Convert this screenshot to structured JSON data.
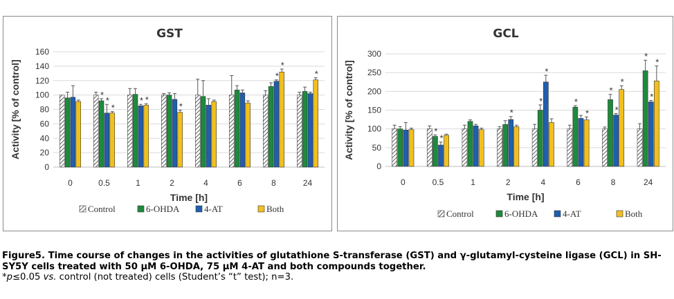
{
  "chart_data": [
    {
      "type": "bar",
      "title": "GST",
      "xlabel": "Time [h]",
      "ylabel": "Activity [% of control]",
      "ylim": [
        0,
        160
      ],
      "yticks": [
        0,
        20,
        40,
        60,
        80,
        100,
        120,
        140,
        160
      ],
      "categories": [
        "0",
        "0.5",
        "1",
        "2",
        "4",
        "6",
        "8",
        "24"
      ],
      "legend_position": "bottom",
      "grid": true,
      "series": [
        {
          "name": "Control",
          "values": [
            100,
            100,
            100,
            100,
            100,
            100,
            100,
            100
          ],
          "errors": [
            0,
            4,
            9,
            2,
            22,
            27,
            6,
            4
          ],
          "color": "#ffffff",
          "pattern": "hatch"
        },
        {
          "name": "6-OHDA",
          "values": [
            96,
            92,
            101,
            100,
            98,
            107,
            112,
            105
          ],
          "errors": [
            8,
            3,
            8,
            3,
            22,
            6,
            5,
            6
          ],
          "color": "#1e8a3c"
        },
        {
          "name": "4-AT",
          "values": [
            97,
            75,
            85,
            94,
            86,
            103,
            119,
            102
          ],
          "errors": [
            16,
            12,
            2,
            8,
            9,
            4,
            2,
            2
          ],
          "color": "#1f5fad"
        },
        {
          "name": "Both",
          "values": [
            91,
            75,
            86,
            76,
            91,
            89,
            132,
            121
          ],
          "errors": [
            2,
            2,
            2,
            3,
            2,
            3,
            4,
            3
          ],
          "color": "#f2c01e"
        }
      ],
      "significance": [
        {
          "category": "0.5",
          "series": "6-OHDA"
        },
        {
          "category": "0.5",
          "series": "4-AT"
        },
        {
          "category": "0.5",
          "series": "Both"
        },
        {
          "category": "1",
          "series": "4-AT"
        },
        {
          "category": "1",
          "series": "Both"
        },
        {
          "category": "2",
          "series": "Both"
        },
        {
          "category": "8",
          "series": "4-AT"
        },
        {
          "category": "8",
          "series": "Both"
        },
        {
          "category": "24",
          "series": "Both"
        }
      ],
      "significance_marker": "*"
    },
    {
      "type": "bar",
      "title": "GCL",
      "xlabel": "Time [h]",
      "ylabel": "Activity [% of control]",
      "ylim": [
        0,
        300
      ],
      "yticks": [
        0,
        50,
        100,
        150,
        200,
        250,
        300
      ],
      "categories": [
        "0",
        "0.5",
        "1",
        "2",
        "4",
        "6",
        "8",
        "24"
      ],
      "legend_position": "bottom",
      "grid": true,
      "series": [
        {
          "name": "Control",
          "values": [
            100,
            100,
            100,
            100,
            100,
            100,
            100,
            100
          ],
          "errors": [
            10,
            8,
            10,
            6,
            12,
            10,
            5,
            14
          ],
          "color": "#ffffff",
          "pattern": "hatch"
        },
        {
          "name": "6-OHDA",
          "values": [
            100,
            80,
            120,
            112,
            150,
            158,
            178,
            255
          ],
          "errors": [
            6,
            4,
            4,
            10,
            14,
            4,
            14,
            28
          ],
          "color": "#1e8a3c"
        },
        {
          "name": "4-AT",
          "values": [
            97,
            57,
            108,
            125,
            225,
            128,
            137,
            172
          ],
          "errors": [
            20,
            8,
            4,
            8,
            18,
            8,
            4,
            4
          ],
          "color": "#1f5fad"
        },
        {
          "name": "Both",
          "values": [
            98,
            83,
            98,
            106,
            117,
            124,
            205,
            228
          ],
          "errors": [
            4,
            3,
            4,
            4,
            10,
            8,
            10,
            40
          ],
          "color": "#f2c01e"
        }
      ],
      "significance": [
        {
          "category": "0.5",
          "series": "6-OHDA"
        },
        {
          "category": "0.5",
          "series": "4-AT"
        },
        {
          "category": "2",
          "series": "4-AT"
        },
        {
          "category": "4",
          "series": "6-OHDA"
        },
        {
          "category": "4",
          "series": "4-AT"
        },
        {
          "category": "6",
          "series": "6-OHDA"
        },
        {
          "category": "6",
          "series": "Both"
        },
        {
          "category": "8",
          "series": "6-OHDA"
        },
        {
          "category": "8",
          "series": "4-AT"
        },
        {
          "category": "8",
          "series": "Both"
        },
        {
          "category": "24",
          "series": "6-OHDA"
        },
        {
          "category": "24",
          "series": "4-AT"
        },
        {
          "category": "24",
          "series": "Both"
        }
      ],
      "significance_marker": "*"
    }
  ],
  "caption": {
    "title": "Figure5. Time course of changes in the activities of glutathione S-transferase (GST) and γ-glutamyl-cysteine ligase (GCL) in SH-SY5Y cells treated with 50 µM 6-OHDA, 75 µM 4-AT and both compounds together.",
    "note_star": "*",
    "note_p": "p",
    "note_mid": "≤0.05 ",
    "note_vs": "vs.",
    "note_rest": " control (not treated) cells (Student’s “t” test); n=3."
  }
}
